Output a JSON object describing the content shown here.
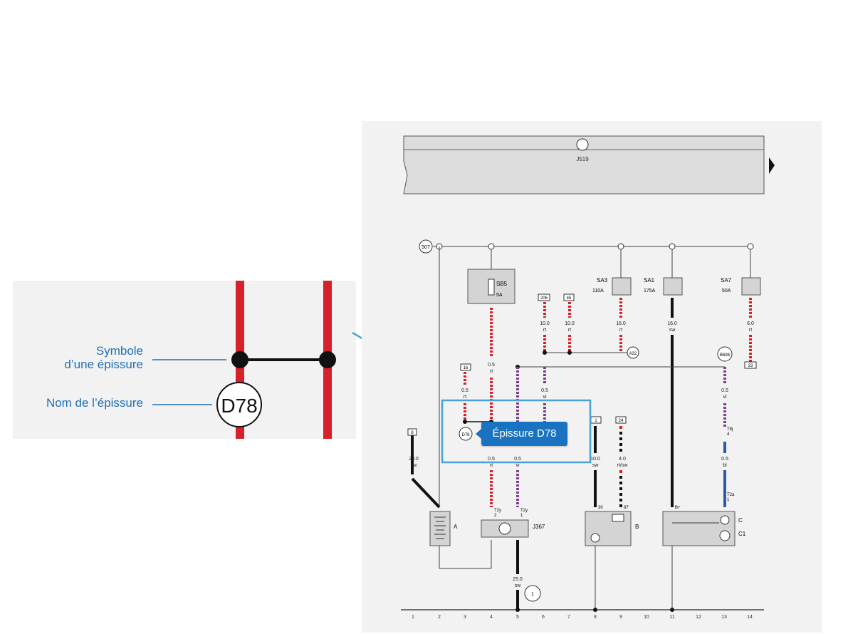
{
  "zoom": {
    "symbol_label_line1": "Symbole",
    "symbol_label_line2": "d’une épissure",
    "name_label": "Nom de l’épissure",
    "splice_name": "D78"
  },
  "tooltip": {
    "text": "Épissure D78"
  },
  "diagram": {
    "module_label": "J519",
    "ground_ref": "507",
    "fuses": [
      {
        "name": "SB5",
        "rating": "5A"
      },
      {
        "name": "SA3",
        "rating": "110A"
      },
      {
        "name": "SA1",
        "rating": "175A"
      },
      {
        "name": "SA7",
        "rating": "50A"
      }
    ],
    "boxes": [
      "206",
      "45",
      "16",
      "8",
      "1",
      "24",
      "33"
    ],
    "circles": [
      "A32",
      "B698",
      "D78",
      "1"
    ],
    "wires": [
      {
        "size": "10.0",
        "color": "rt"
      },
      {
        "size": "10.0",
        "color": "rt"
      },
      {
        "size": "16.0",
        "color": "rt"
      },
      {
        "size": "16.0",
        "color": "sw"
      },
      {
        "size": "6.0",
        "color": "rt"
      },
      {
        "size": "0.5",
        "color": "rt"
      },
      {
        "size": "0.5",
        "color": "rt"
      },
      {
        "size": "0.5",
        "color": "vi"
      },
      {
        "size": "0.5",
        "color": "vi"
      },
      {
        "size": "20.0",
        "color": "sw"
      },
      {
        "size": "0.5",
        "color": "rt"
      },
      {
        "size": "0.5",
        "color": "vi"
      },
      {
        "size": "10.0",
        "color": "sw"
      },
      {
        "size": "4.0",
        "color": "rt/sw"
      },
      {
        "size": "0.5",
        "color": "bl"
      },
      {
        "size": "25.0",
        "color": "sw"
      },
      {
        "size": "0.5",
        "color": "vi"
      }
    ],
    "components": {
      "battery": "A",
      "control": "J367",
      "starter": "B",
      "alternator": "C",
      "alternator_reg": "C1"
    },
    "pins": [
      "T2y",
      "2",
      "T2y",
      "1",
      "30",
      "50",
      "T8j",
      "4",
      "T2a",
      "1",
      "B+",
      "5",
      "87"
    ],
    "tracks": [
      "1",
      "2",
      "3",
      "4",
      "5",
      "6",
      "7",
      "8",
      "9",
      "10",
      "11",
      "12",
      "13",
      "14"
    ]
  },
  "colors": {
    "accent": "#1a73c1",
    "wire_red": "#d6202a",
    "wire_violet": "#7b3f8c",
    "wire_blue": "#2a5ba8",
    "leader": "#4aa3d8"
  }
}
